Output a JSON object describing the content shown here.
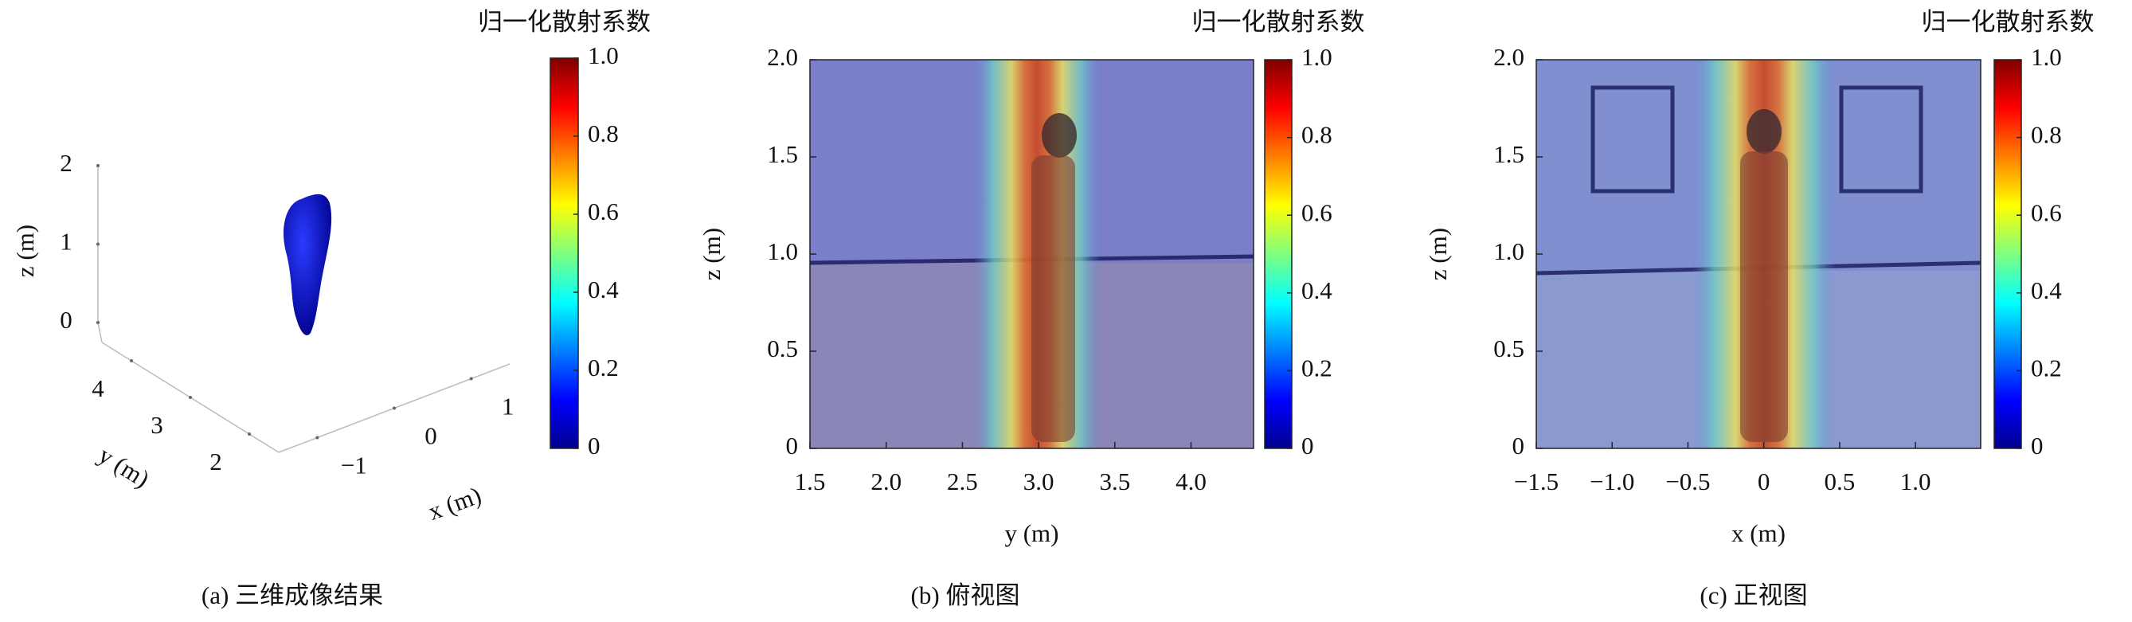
{
  "chart_data": [
    {
      "type": "surface3d",
      "caption": "(a) 三维成像结果",
      "xlabel": "x (m)",
      "ylabel": "y (m)",
      "zlabel": "z (m)",
      "xlim": [
        -1.5,
        1.5
      ],
      "xticks": [
        {
          "value": -1,
          "label": "−1"
        },
        0,
        1
      ],
      "ylim": [
        1.5,
        4.5
      ],
      "yticks": [
        2,
        3,
        4
      ],
      "zlim": [
        0,
        2
      ],
      "zticks": [
        0,
        1,
        2
      ],
      "colorbar_label": "归一化散射系数",
      "clim": [
        0,
        1
      ],
      "cticks": [
        0,
        0.2,
        0.4,
        0.6,
        0.8,
        {
          "value": 1,
          "label": "1.0"
        }
      ]
    },
    {
      "type": "heatmap",
      "caption": "(b) 俯视图",
      "xlabel": "y (m)",
      "ylabel": "z (m)",
      "xlim": [
        1.5,
        4.41
      ],
      "xticks": [
        {
          "value": 1.5,
          "label": "1.5"
        },
        {
          "value": 2,
          "label": "2.0"
        },
        {
          "value": 2.5,
          "label": "2.5"
        },
        {
          "value": 3,
          "label": "3.0"
        },
        {
          "value": 3.5,
          "label": "3.5"
        },
        {
          "value": 4,
          "label": "4.0"
        }
      ],
      "ylim": [
        0,
        2
      ],
      "yticks": [
        0,
        0.5,
        {
          "value": 1,
          "label": "1.0"
        },
        1.5,
        {
          "value": 2,
          "label": "2.0"
        }
      ],
      "colorbar_label": "归一化散射系数",
      "clim": [
        0,
        1
      ],
      "cticks": [
        0,
        0.2,
        0.4,
        0.6,
        0.8,
        {
          "value": 1,
          "label": "1.0"
        }
      ]
    },
    {
      "type": "heatmap",
      "caption": "(c) 正视图",
      "xlabel": "x (m)",
      "ylabel": "z (m)",
      "xlim": [
        -1.5,
        1.43
      ],
      "xticks": [
        {
          "value": -1.5,
          "label": "−1.5"
        },
        {
          "value": -1,
          "label": "−1.0"
        },
        {
          "value": -0.5,
          "label": "−0.5"
        },
        0,
        0.5,
        {
          "value": 1,
          "label": "1.0"
        }
      ],
      "ylim": [
        0,
        2
      ],
      "yticks": [
        0,
        0.5,
        {
          "value": 1,
          "label": "1.0"
        },
        1.5,
        {
          "value": 2,
          "label": "2.0"
        }
      ],
      "colorbar_label": "归一化散射系数",
      "clim": [
        0,
        1
      ],
      "cticks": [
        0,
        0.2,
        0.4,
        0.6,
        0.8,
        {
          "value": 1,
          "label": "1.0"
        }
      ]
    }
  ]
}
